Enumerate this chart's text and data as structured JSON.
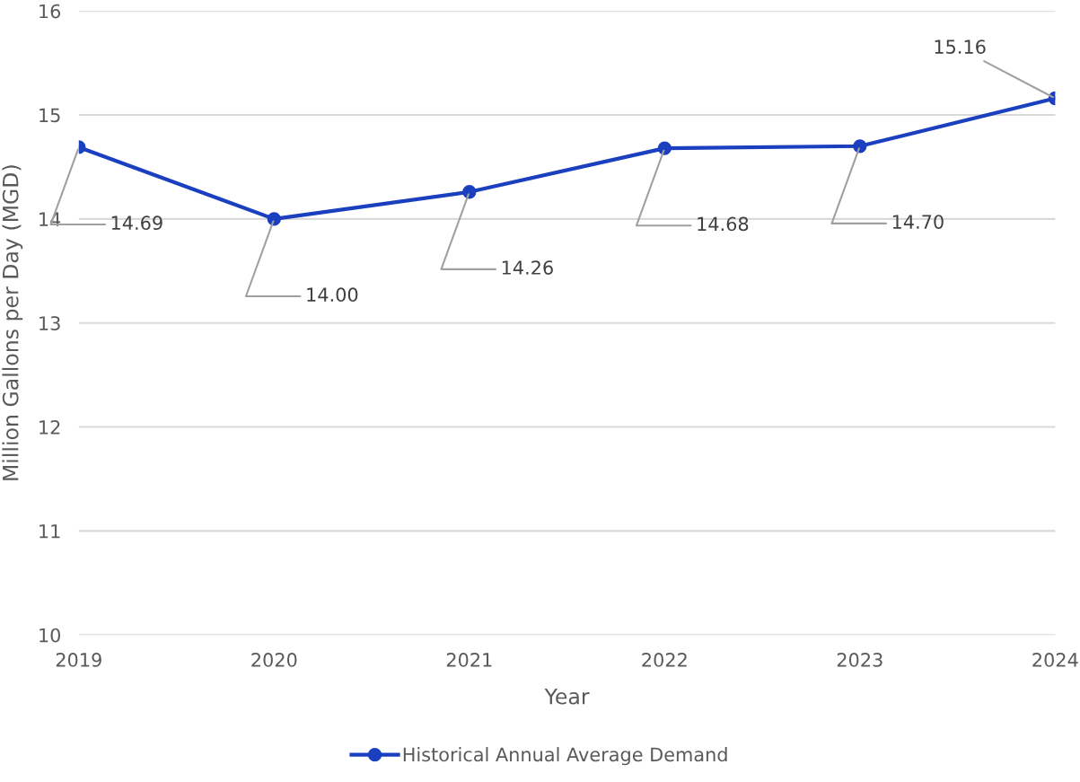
{
  "chart_data": {
    "type": "line",
    "xlabel": "Year",
    "ylabel": "Million Gallons per Day (MGD)",
    "categories": [
      "2019",
      "2020",
      "2021",
      "2022",
      "2023",
      "2024"
    ],
    "series": [
      {
        "name": "Historical Annual Average Demand",
        "color": "#1a3fbf",
        "values": [
          14.69,
          14.0,
          14.26,
          14.68,
          14.7,
          15.16
        ],
        "value_labels": [
          "14.69",
          "14.00",
          "14.26",
          "14.68",
          "14.70",
          "15.16"
        ]
      }
    ],
    "ylim": [
      10,
      16
    ],
    "yticks": [
      10,
      11,
      12,
      13,
      14,
      15,
      16
    ],
    "grid": "y",
    "legend": "bottom",
    "marker": "circle",
    "line_style": "solid"
  }
}
